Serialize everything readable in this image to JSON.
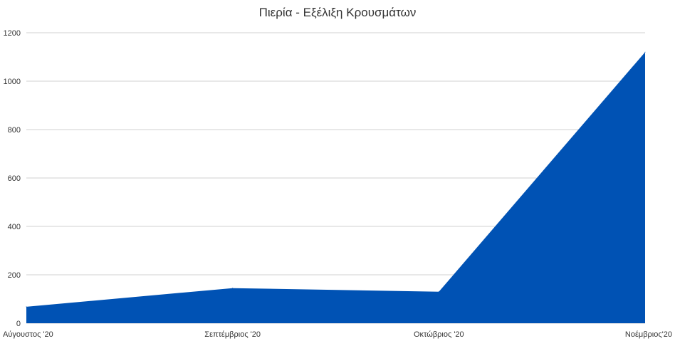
{
  "chart_data": {
    "type": "area",
    "title": "Πιερία - Εξέλιξη Κρουσμάτων",
    "categories": [
      "Αύγουστος '20",
      "Σεπτέμβριος '20",
      "Οκτώβριος '20",
      "Νοέμβριος'20"
    ],
    "series": [
      {
        "values": [
          68,
          145,
          130,
          1120
        ],
        "color": "#0052b4"
      }
    ],
    "ylim": [
      0,
      1200
    ],
    "yticks": [
      0,
      200,
      400,
      600,
      800,
      1000,
      1200
    ],
    "grid": true,
    "legend": "none"
  }
}
